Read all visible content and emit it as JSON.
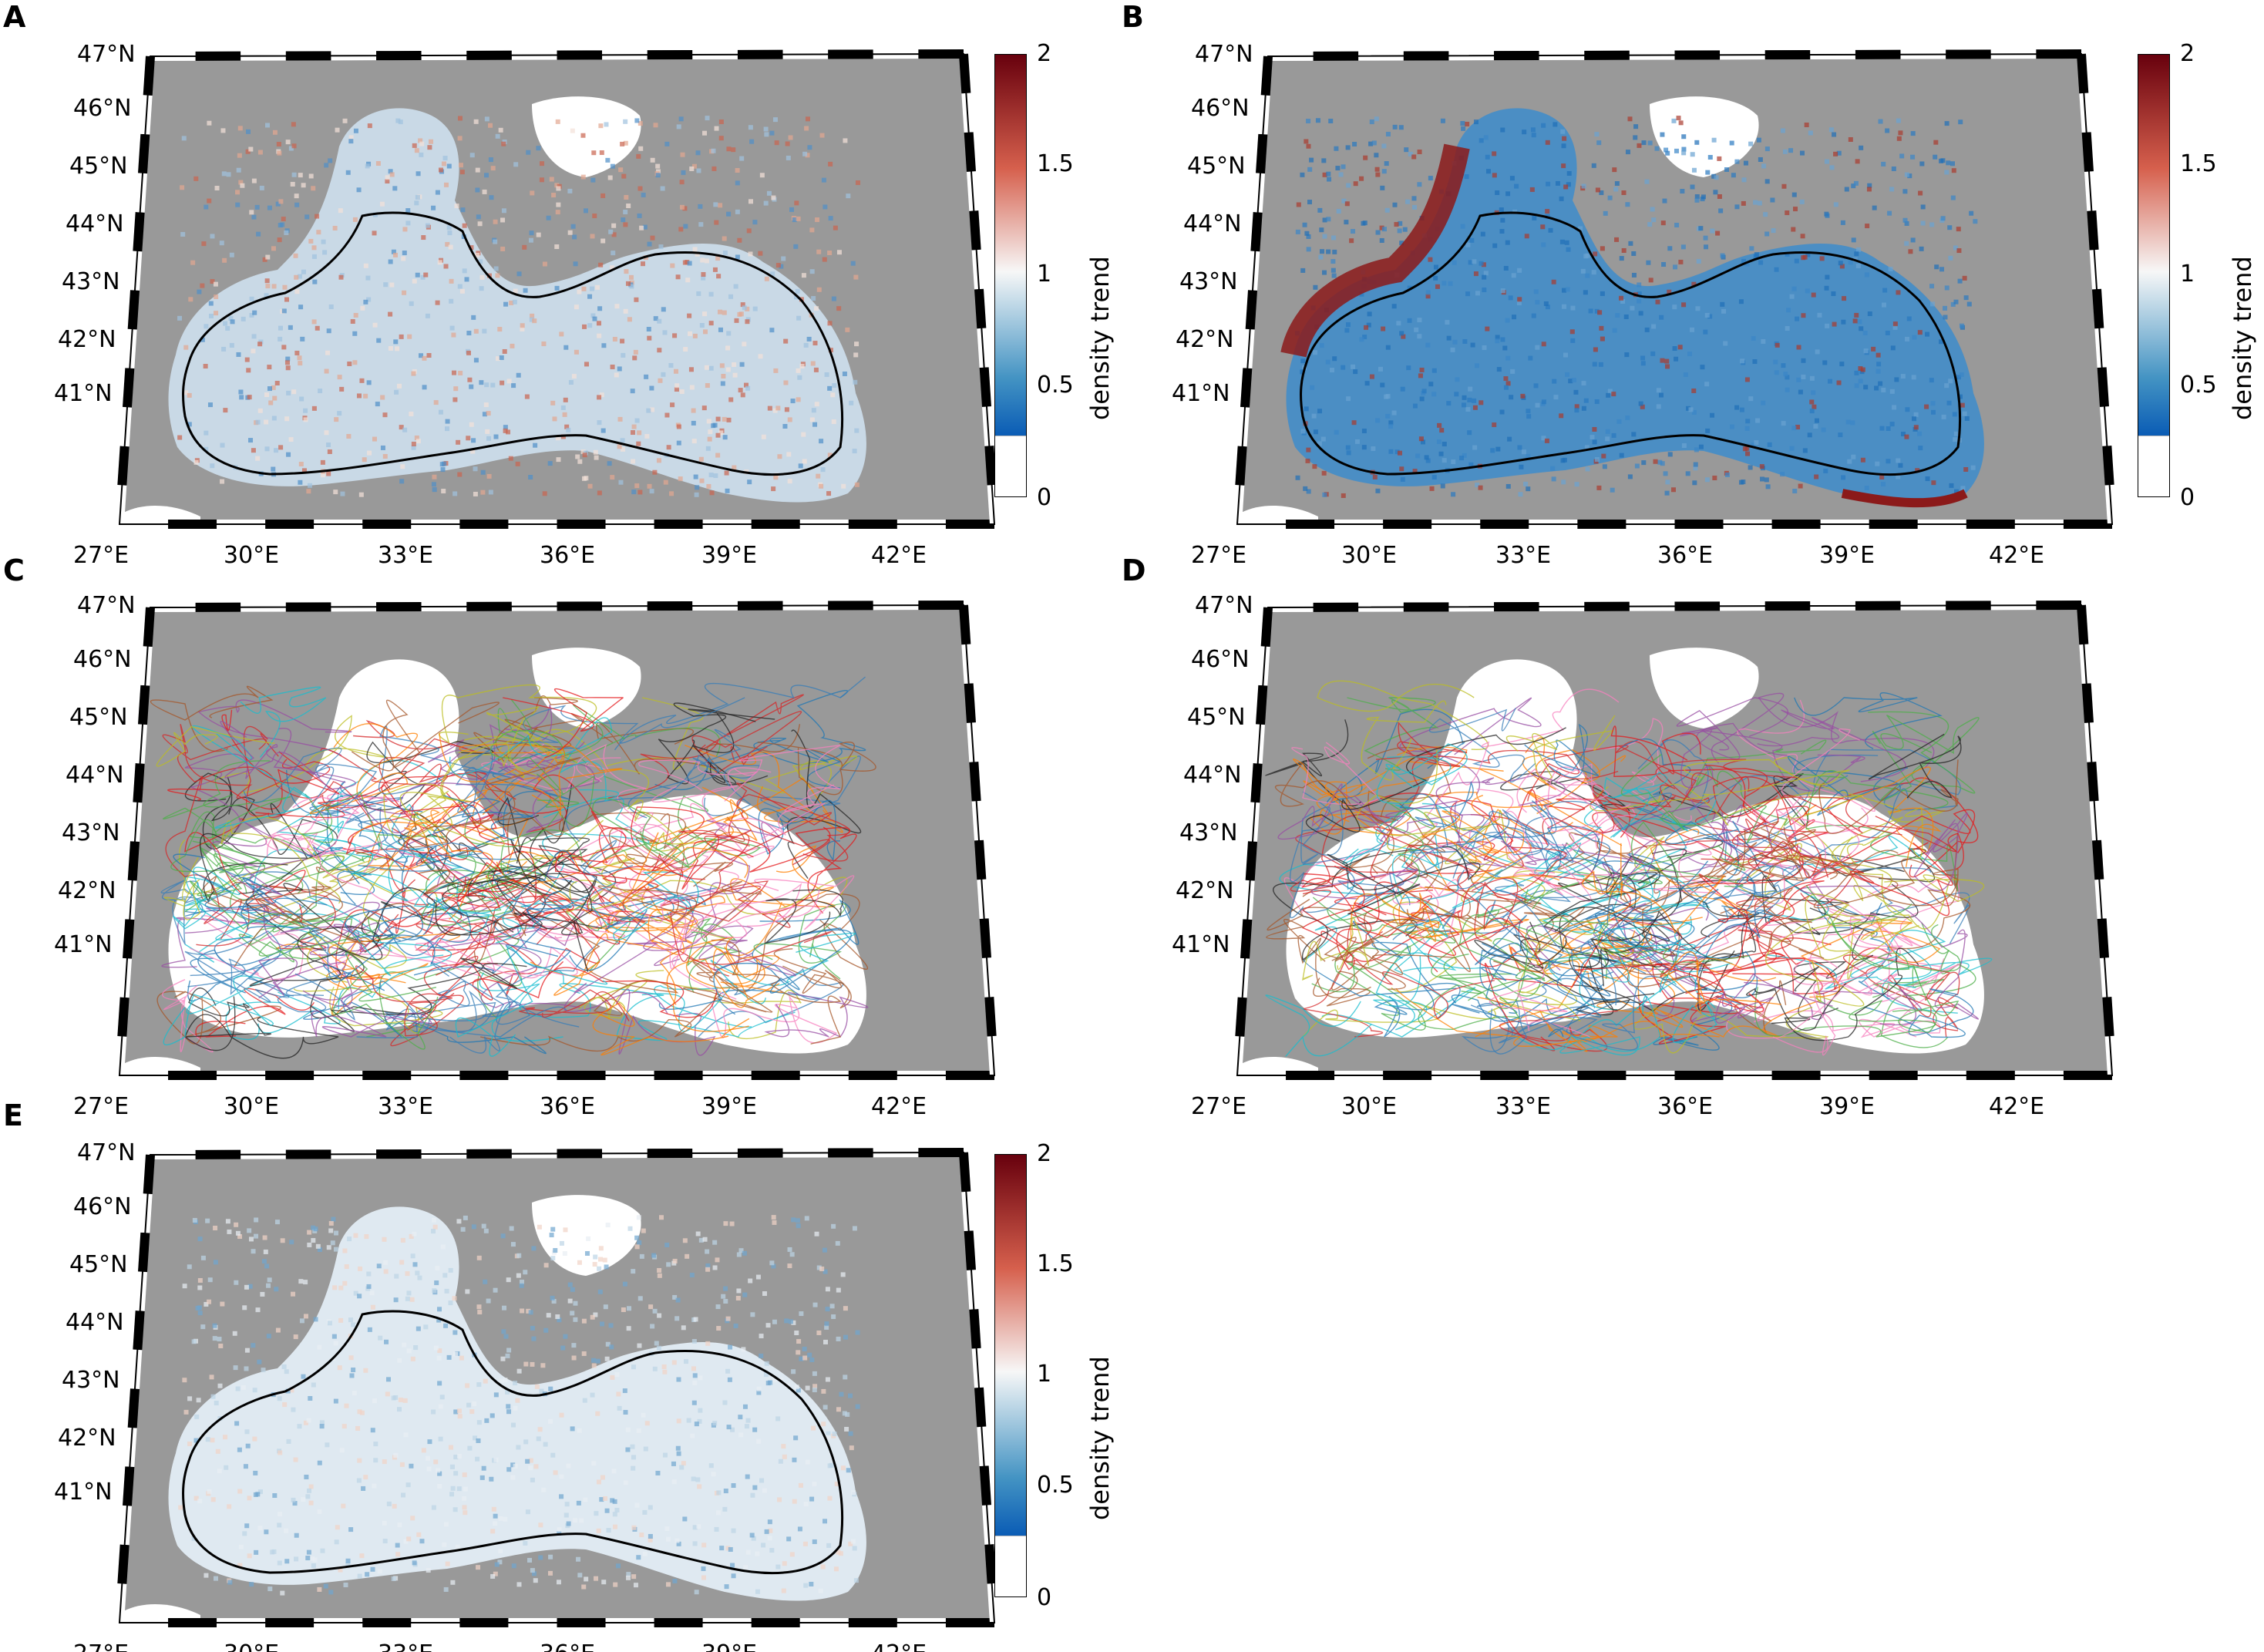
{
  "panels": [
    {
      "letter": "A",
      "kind": "density",
      "has_colorbar": true,
      "tint": "mixed"
    },
    {
      "letter": "B",
      "kind": "density",
      "has_colorbar": true,
      "tint": "blue-red-coast"
    },
    {
      "letter": "C",
      "kind": "trajectories",
      "has_colorbar": false,
      "tint": "lines"
    },
    {
      "letter": "D",
      "kind": "trajectories",
      "has_colorbar": false,
      "tint": "lines"
    },
    {
      "letter": "E",
      "kind": "density",
      "has_colorbar": true,
      "tint": "light"
    }
  ],
  "lat_labels": [
    "47°N",
    "46°N",
    "45°N",
    "44°N",
    "43°N",
    "42°N",
    "41°N"
  ],
  "lon_labels": [
    "27°E",
    "30°E",
    "33°E",
    "36°E",
    "39°E",
    "42°E"
  ],
  "colorbar": {
    "title": "density trend",
    "ticks": [
      "2",
      "1.5",
      "1",
      "0.5",
      "0"
    ],
    "colors": {
      "high": "#67000d",
      "mid_high": "#d6604d",
      "mid": "#f7f7f7",
      "mid_low": "#4393c3",
      "low": "#0a5cb5",
      "zero": "#ffffff"
    }
  },
  "colors": {
    "land": "#999999",
    "water": "#ffffff",
    "coast_contour": "#000000"
  }
}
